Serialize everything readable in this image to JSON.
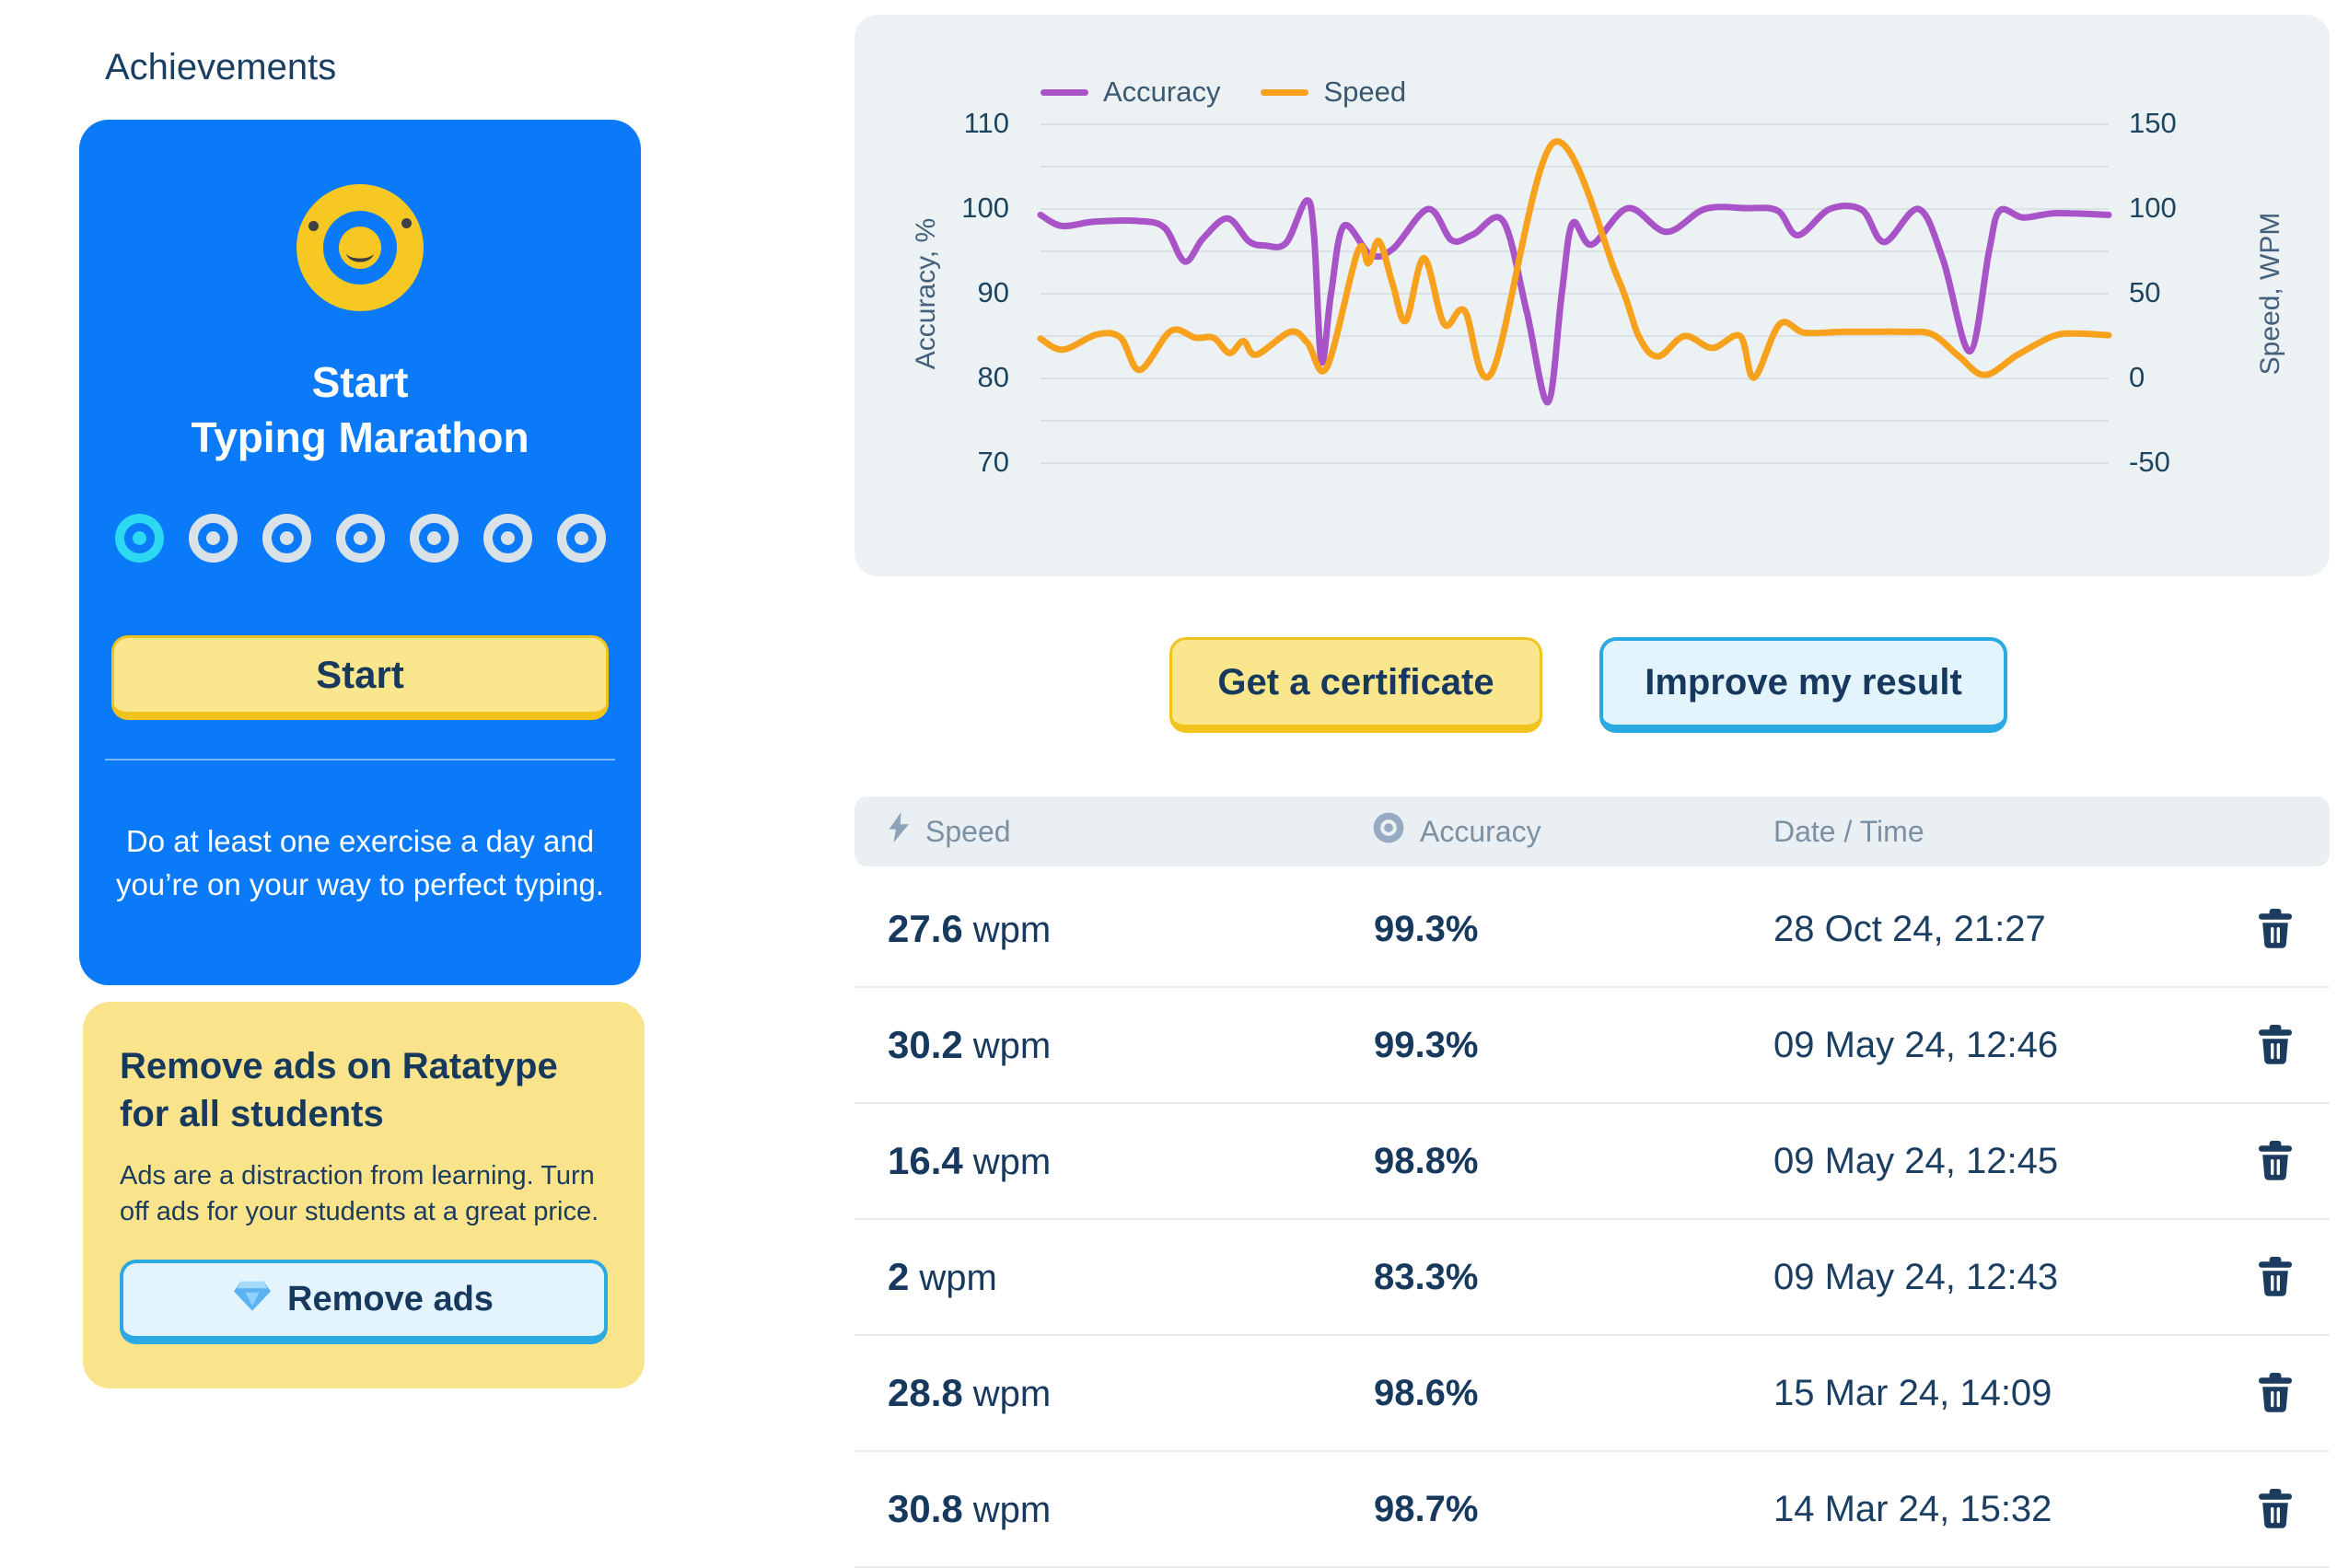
{
  "header": {
    "title": "Achievements"
  },
  "marathon_card": {
    "icon": "medal-smiley-icon",
    "title_line1": "Start",
    "title_line2": "Typing Marathon",
    "progress": {
      "total": 7,
      "completed": 1,
      "completed_color": "#2BD9F2",
      "remaining_color": "#D9E2E9"
    },
    "start_button_label": "Start",
    "description": "Do at least one exercise a day and you’re on your way to perfect typing."
  },
  "promo_card": {
    "title": "Remove ads on Ratatype for all students",
    "body": "Ads are a distraction from learning. Turn off ads for your students at a great price.",
    "button_label": "Remove ads",
    "button_icon": "gem-icon"
  },
  "actions": {
    "certificate_label": "Get a certificate",
    "improve_label": "Improve my result"
  },
  "chart_data": {
    "type": "line",
    "title": "",
    "legend_position": "top-left",
    "grid": true,
    "x_unit": "percent_of_plot_width",
    "y_left": {
      "label": "Accuracy, %",
      "ticks": [
        110,
        100,
        90,
        80,
        70
      ],
      "min": 70,
      "max": 110,
      "minor_step": 5
    },
    "y_right": {
      "label": "Speed, WPM",
      "ticks": [
        150,
        100,
        50,
        0,
        -50
      ],
      "min": -50,
      "max": 150
    },
    "series": [
      {
        "name": "Accuracy",
        "axis": "left",
        "color": "#A854C8",
        "points": [
          [
            0,
            99.3
          ],
          [
            2,
            98.0
          ],
          [
            5,
            98.5
          ],
          [
            9,
            98.6
          ],
          [
            11.6,
            97.8
          ],
          [
            13.5,
            93.8
          ],
          [
            15.2,
            96.5
          ],
          [
            17.5,
            98.9
          ],
          [
            19.5,
            96.2
          ],
          [
            21,
            95.7
          ],
          [
            23,
            96.0
          ],
          [
            24.9,
            101.0
          ],
          [
            25.6,
            97
          ],
          [
            26.3,
            82.0
          ],
          [
            27.2,
            90
          ],
          [
            28.4,
            98.0
          ],
          [
            30.9,
            94.6
          ],
          [
            33,
            95.3
          ],
          [
            36.3,
            100.0
          ],
          [
            38.5,
            96.3
          ],
          [
            40.5,
            97.0
          ],
          [
            43.3,
            98.6
          ],
          [
            45.5,
            88
          ],
          [
            47.5,
            77.2
          ],
          [
            48.8,
            90
          ],
          [
            49.8,
            98.3
          ],
          [
            51.6,
            95.8
          ],
          [
            55,
            100.1
          ],
          [
            58.6,
            97.3
          ],
          [
            62.2,
            100
          ],
          [
            66,
            100.1
          ],
          [
            69,
            99.8
          ],
          [
            70.9,
            96.9
          ],
          [
            73.9,
            100
          ],
          [
            76.9,
            99.9
          ],
          [
            79,
            96.1
          ],
          [
            82.2,
            100
          ],
          [
            84.5,
            94
          ],
          [
            87,
            83.2
          ],
          [
            88.8,
            95
          ],
          [
            89.8,
            99.8
          ],
          [
            92,
            99.0
          ],
          [
            95,
            99.5
          ],
          [
            100,
            99.3
          ]
        ]
      },
      {
        "name": "Speed",
        "axis": "right",
        "color": "#F7A11C",
        "points": [
          [
            0,
            23.5
          ],
          [
            2.1,
            17
          ],
          [
            5.3,
            26
          ],
          [
            7.5,
            24
          ],
          [
            9.3,
            5
          ],
          [
            12.2,
            28
          ],
          [
            14.5,
            24
          ],
          [
            16.2,
            24
          ],
          [
            17.7,
            15
          ],
          [
            19,
            22
          ],
          [
            20.2,
            14
          ],
          [
            23.4,
            27.5
          ],
          [
            25,
            21
          ],
          [
            26.8,
            6.5
          ],
          [
            29.7,
            75
          ],
          [
            30.7,
            68
          ],
          [
            31.7,
            81
          ],
          [
            33,
            55
          ],
          [
            34.2,
            34
          ],
          [
            35.9,
            71
          ],
          [
            37.8,
            32
          ],
          [
            39.7,
            40
          ],
          [
            42.3,
            4
          ],
          [
            48,
            139
          ],
          [
            54,
            60
          ],
          [
            56,
            25
          ],
          [
            57.8,
            13
          ],
          [
            60.3,
            25
          ],
          [
            62.9,
            18
          ],
          [
            65.5,
            25
          ],
          [
            66.8,
            0.5
          ],
          [
            69.2,
            32
          ],
          [
            71.5,
            27
          ],
          [
            75,
            27.5
          ],
          [
            78,
            27.5
          ],
          [
            81,
            27.5
          ],
          [
            83.5,
            26
          ],
          [
            86,
            13
          ],
          [
            88.4,
            2
          ],
          [
            91.5,
            14
          ],
          [
            94.8,
            25
          ],
          [
            97,
            26.5
          ],
          [
            100,
            25.5
          ]
        ]
      }
    ]
  },
  "results_table": {
    "columns": [
      {
        "label": "Speed",
        "icon": "lightning-icon"
      },
      {
        "label": "Accuracy",
        "icon": "target-icon"
      },
      {
        "label": "Date / Time",
        "icon": null
      }
    ],
    "delete_icon": "trash-icon",
    "rows": [
      {
        "speed": "27.6",
        "unit": "wpm",
        "accuracy": "99.3%",
        "datetime": "28 Oct 24, 21:27"
      },
      {
        "speed": "30.2",
        "unit": "wpm",
        "accuracy": "99.3%",
        "datetime": "09 May 24, 12:46"
      },
      {
        "speed": "16.4",
        "unit": "wpm",
        "accuracy": "98.8%",
        "datetime": "09 May 24, 12:45"
      },
      {
        "speed": "2",
        "unit": "wpm",
        "accuracy": "83.3%",
        "datetime": "09 May 24, 12:43"
      },
      {
        "speed": "28.8",
        "unit": "wpm",
        "accuracy": "98.6%",
        "datetime": "15 Mar 24, 14:09"
      },
      {
        "speed": "30.8",
        "unit": "wpm",
        "accuracy": "98.7%",
        "datetime": "14 Mar 24, 15:32"
      }
    ]
  },
  "colors": {
    "primary_blue": "#0A7AF8",
    "medal_yellow": "#F8C822",
    "yellow_button_fill": "#FAE78D",
    "yellow_button_border": "#F2C31D",
    "blue_button_fill": "#E3F4FD",
    "blue_button_border": "#2AA9E2",
    "navy_text": "#17395E",
    "chart_background": "#ECF1F4",
    "accuracy_purple": "#A854C8",
    "speed_orange": "#F7A11C",
    "progress_cyan": "#2BD9F2",
    "progress_gray": "#D9E2E9"
  }
}
